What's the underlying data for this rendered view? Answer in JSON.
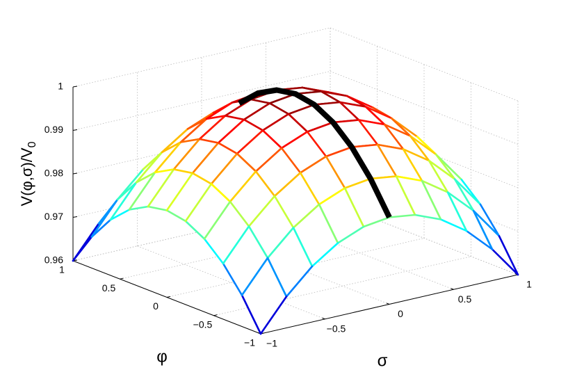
{
  "chart_data": {
    "type": "mesh3d",
    "xlabel": "φ",
    "ylabel": "σ",
    "zlabel": "V(φ,σ)/V",
    "zlabel_subscript": "0",
    "phi": [
      -1,
      -0.8,
      -0.6,
      -0.4,
      -0.2,
      0,
      0.2,
      0.4,
      0.6,
      0.8,
      1
    ],
    "sigma": [
      -1,
      -0.8,
      -0.6,
      -0.4,
      -0.2,
      0,
      0.2,
      0.4,
      0.6,
      0.8,
      1
    ],
    "z": [
      [
        0.96,
        0.9672,
        0.9728,
        0.9768,
        0.9792,
        0.98,
        0.9792,
        0.9768,
        0.9728,
        0.9672,
        0.96
      ],
      [
        0.9672,
        0.9744,
        0.98,
        0.984,
        0.9864,
        0.9872,
        0.9864,
        0.984,
        0.98,
        0.9744,
        0.9672
      ],
      [
        0.9728,
        0.98,
        0.9856,
        0.9896,
        0.992,
        0.9928,
        0.992,
        0.9896,
        0.9856,
        0.98,
        0.9728
      ],
      [
        0.9768,
        0.984,
        0.9896,
        0.9936,
        0.996,
        0.9968,
        0.996,
        0.9936,
        0.9896,
        0.984,
        0.9768
      ],
      [
        0.9792,
        0.9864,
        0.992,
        0.996,
        0.9984,
        0.9992,
        0.9984,
        0.996,
        0.992,
        0.9864,
        0.9792
      ],
      [
        0.98,
        0.9872,
        0.9928,
        0.9968,
        0.9992,
        1,
        0.9992,
        0.9968,
        0.9928,
        0.9872,
        0.98
      ],
      [
        0.9792,
        0.9864,
        0.992,
        0.996,
        0.9984,
        0.9992,
        0.9984,
        0.996,
        0.992,
        0.9864,
        0.9792
      ],
      [
        0.9768,
        0.984,
        0.9896,
        0.9936,
        0.996,
        0.9968,
        0.996,
        0.9936,
        0.9896,
        0.984,
        0.9768
      ],
      [
        0.9728,
        0.98,
        0.9856,
        0.9896,
        0.992,
        0.9928,
        0.992,
        0.9896,
        0.9856,
        0.98,
        0.9728
      ],
      [
        0.9672,
        0.9744,
        0.98,
        0.984,
        0.9864,
        0.9872,
        0.9864,
        0.984,
        0.98,
        0.9744,
        0.9672
      ],
      [
        0.96,
        0.9672,
        0.9728,
        0.9768,
        0.9792,
        0.98,
        0.9792,
        0.9768,
        0.9728,
        0.9672,
        0.96
      ]
    ],
    "colormap": "jet",
    "curve": {
      "color": "#000000",
      "phi": [
        -1,
        -0.8,
        -0.6,
        -0.4,
        -0.2,
        0,
        0.2,
        0.4,
        0.6
      ],
      "sigma": [
        0,
        0,
        0,
        0,
        0,
        0,
        0,
        0,
        0
      ],
      "z": [
        0.98,
        0.9872,
        0.9928,
        0.9968,
        0.9992,
        1,
        0.9992,
        0.9968,
        0.9928
      ]
    },
    "xlim": [
      -1,
      1
    ],
    "xticks": [
      {
        "value": -1,
        "label": "−1"
      },
      {
        "value": -0.5,
        "label": "−0.5"
      },
      0,
      0.5,
      1
    ],
    "ylim": [
      -1,
      1
    ],
    "yticks": [
      {
        "value": -1,
        "label": "−1"
      },
      {
        "value": -0.5,
        "label": "−0.5"
      },
      0,
      0.5,
      1
    ],
    "zlim": [
      0.96,
      1
    ],
    "zticks": [
      0.96,
      0.97,
      0.98,
      0.99,
      1
    ],
    "grid": true
  }
}
